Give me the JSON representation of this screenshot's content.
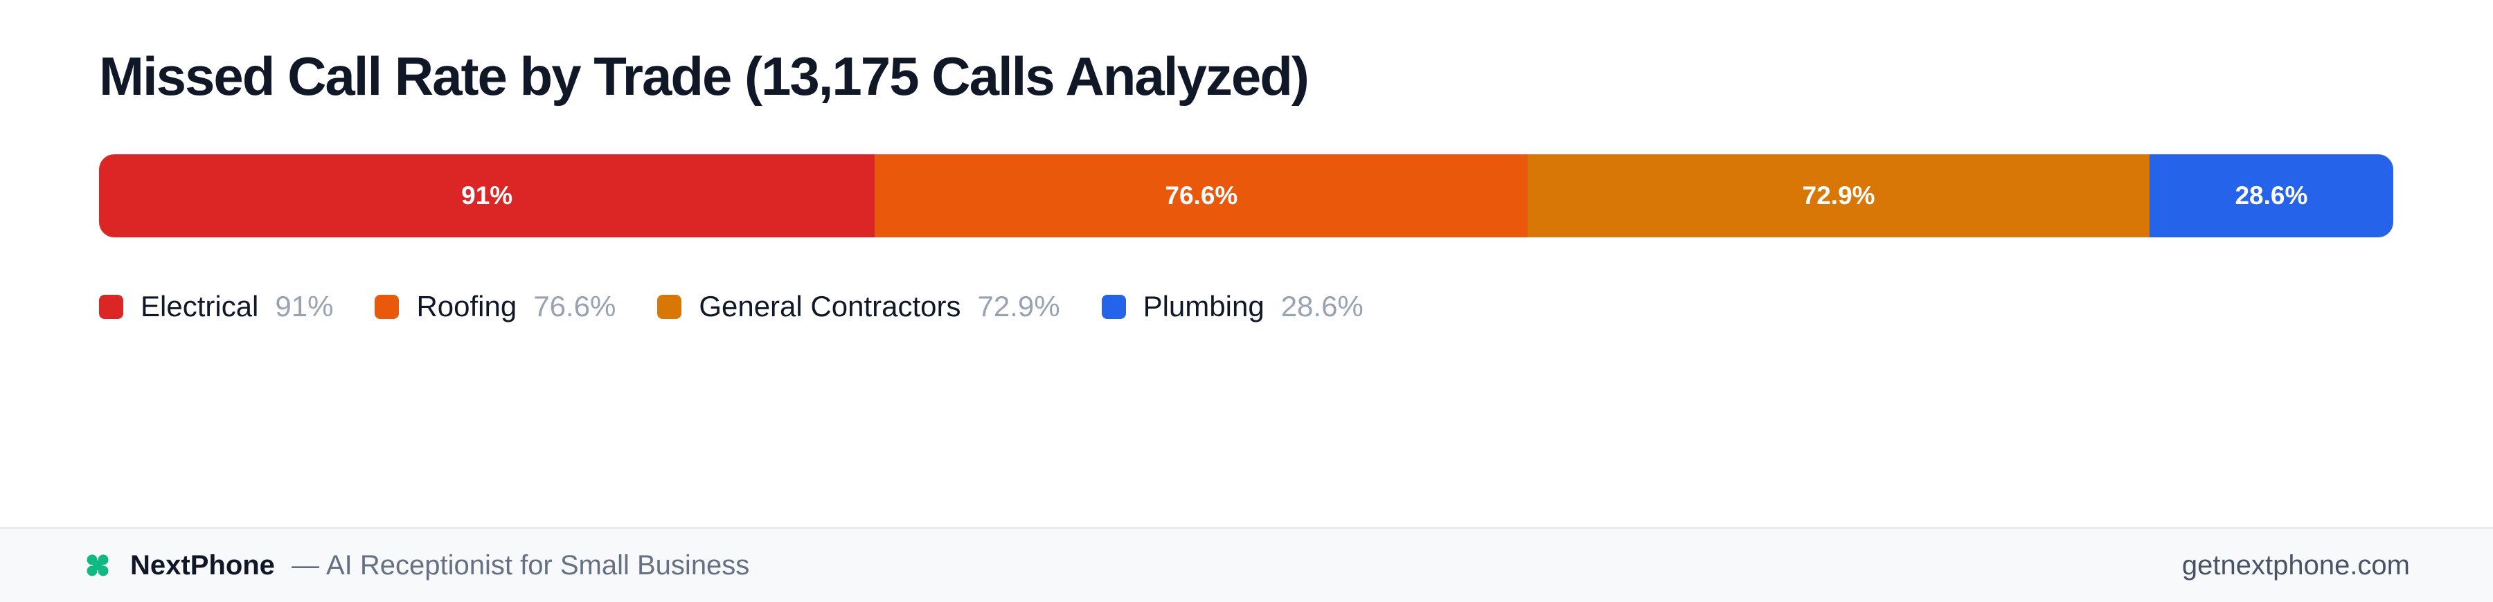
{
  "chart_data": {
    "type": "bar",
    "orientation": "horizontal",
    "stacked": true,
    "title": "Missed Call Rate by Trade (13,175 Calls Analyzed)",
    "legend_position": "bottom-left",
    "grid": false,
    "categories": [
      "Electrical",
      "Roofing",
      "General Contractors",
      "Plumbing"
    ],
    "values": [
      91,
      76.6,
      72.9,
      28.6
    ],
    "value_labels": [
      "91%",
      "76.6%",
      "72.9%",
      "28.6%"
    ],
    "colors": [
      "#dc2626",
      "#ea580c",
      "#d97706",
      "#2563eb"
    ]
  },
  "footer": {
    "brand_name": "NextPhone",
    "separator": "—",
    "tagline": "AI Receptionist for Small Business",
    "website": "getnextphone.com",
    "brand_icon": "clover-icon",
    "brand_color": "#10b981"
  }
}
